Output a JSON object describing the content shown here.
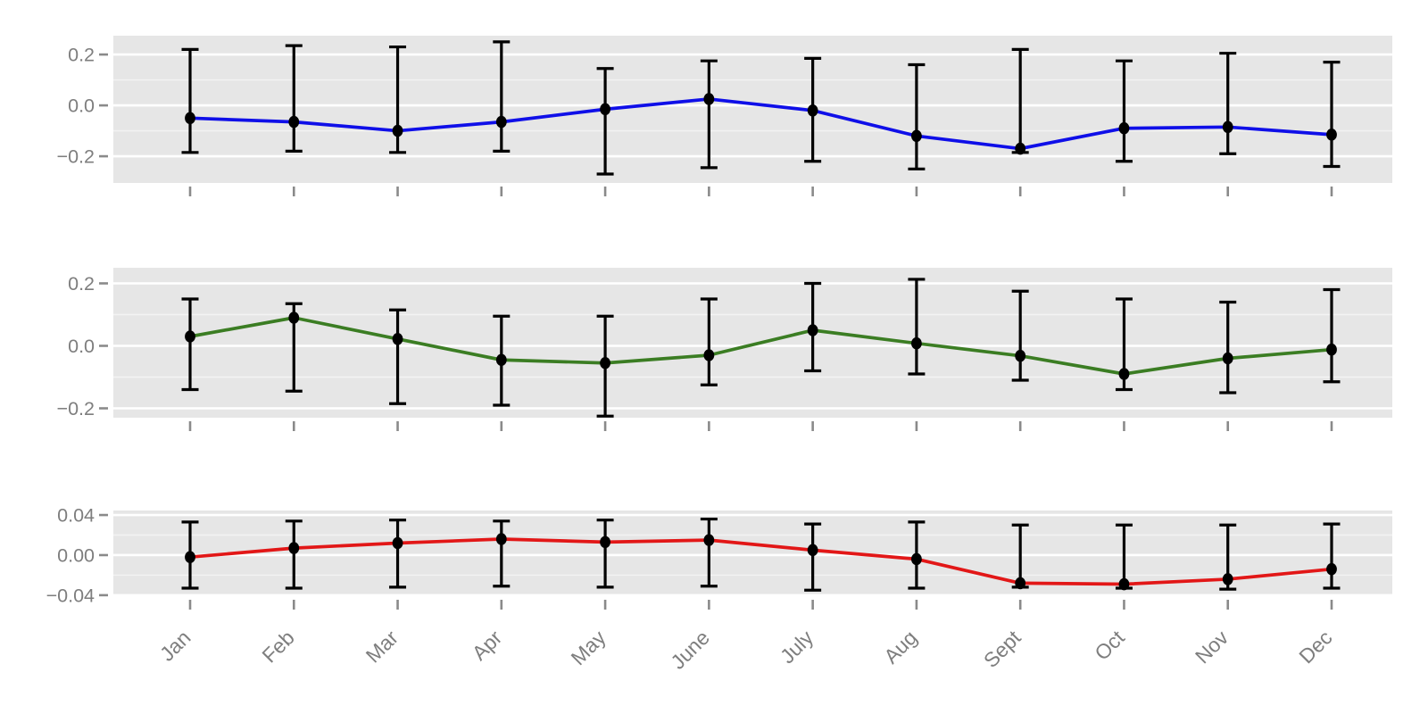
{
  "figure": {
    "description": "Three stacked monthly line charts with error bars",
    "background": "#FFFFFF"
  },
  "style": {
    "panel_bg": "#E6E6E6",
    "grid_major": "#FFFFFF",
    "grid_minor": "#F3F3F3",
    "axis_text_color": "#7E7E7E",
    "tick_color": "#8A8A8A",
    "errorbar_color": "#000000",
    "point_color": "#000000"
  },
  "chart_data": [
    {
      "id": "panel-top",
      "type": "line",
      "line_color": "#0F0FE8",
      "categories": [
        "Jan",
        "Feb",
        "Mar",
        "Apr",
        "May",
        "June",
        "July",
        "Aug",
        "Sept",
        "Oct",
        "Nov",
        "Dec"
      ],
      "values": [
        -0.05,
        -0.065,
        -0.1,
        -0.065,
        -0.015,
        0.025,
        -0.02,
        -0.12,
        -0.17,
        -0.09,
        -0.085,
        -0.115
      ],
      "error_high": [
        0.22,
        0.235,
        0.23,
        0.25,
        0.145,
        0.175,
        0.185,
        0.16,
        0.22,
        0.175,
        0.205,
        0.17
      ],
      "error_low": [
        -0.185,
        -0.18,
        -0.185,
        -0.18,
        -0.27,
        -0.245,
        -0.22,
        -0.25,
        -0.185,
        -0.22,
        -0.19,
        -0.24
      ],
      "ylim": [
        -0.305,
        0.274
      ],
      "yticks_major": [
        0.2,
        0,
        -0.2
      ],
      "ytick_labels": [
        "0.2",
        "0.0",
        "−0.2"
      ],
      "yticks_minor": [
        0.1,
        -0.1
      ],
      "grid": true,
      "legend": "none",
      "show_x_labels": false
    },
    {
      "id": "panel-middle",
      "type": "line",
      "line_color": "#3B7D23",
      "categories": [
        "Jan",
        "Feb",
        "Mar",
        "Apr",
        "May",
        "June",
        "July",
        "Aug",
        "Sept",
        "Oct",
        "Nov",
        "Dec"
      ],
      "values": [
        0.03,
        0.09,
        0.022,
        -0.045,
        -0.055,
        -0.03,
        0.05,
        0.008,
        -0.032,
        -0.09,
        -0.04,
        -0.012
      ],
      "error_high": [
        0.15,
        0.135,
        0.115,
        0.095,
        0.095,
        0.15,
        0.2,
        0.213,
        0.175,
        0.15,
        0.14,
        0.18
      ],
      "error_low": [
        -0.14,
        -0.145,
        -0.185,
        -0.19,
        -0.225,
        -0.125,
        -0.08,
        -0.09,
        -0.11,
        -0.14,
        -0.15,
        -0.115
      ],
      "ylim": [
        -0.23,
        0.25
      ],
      "yticks_major": [
        0.2,
        0,
        -0.2
      ],
      "ytick_labels": [
        "0.2",
        "0.0",
        "−0.2"
      ],
      "yticks_minor": [
        0.1,
        -0.1
      ],
      "grid": true,
      "legend": "none",
      "show_x_labels": false
    },
    {
      "id": "panel-bottom",
      "type": "line",
      "line_color": "#E21717",
      "categories": [
        "Jan",
        "Feb",
        "Mar",
        "Apr",
        "May",
        "June",
        "July",
        "Aug",
        "Sept",
        "Oct",
        "Nov",
        "Dec"
      ],
      "values": [
        -0.002,
        0.007,
        0.012,
        0.016,
        0.013,
        0.015,
        0.005,
        -0.004,
        -0.028,
        -0.029,
        -0.024,
        -0.014
      ],
      "error_high": [
        0.033,
        0.034,
        0.035,
        0.034,
        0.035,
        0.036,
        0.031,
        0.033,
        0.03,
        0.03,
        0.03,
        0.031
      ],
      "error_low": [
        -0.033,
        -0.033,
        -0.032,
        -0.031,
        -0.032,
        -0.031,
        -0.035,
        -0.033,
        -0.032,
        -0.033,
        -0.034,
        -0.033
      ],
      "ylim": [
        -0.041,
        0.0445
      ],
      "yticks_major": [
        0.04,
        0,
        -0.04
      ],
      "ytick_labels": [
        "0.04",
        "0.00",
        "−0.04"
      ],
      "yticks_minor": [
        0.02,
        -0.02
      ],
      "grid": true,
      "legend": "none",
      "show_x_labels": true
    }
  ]
}
